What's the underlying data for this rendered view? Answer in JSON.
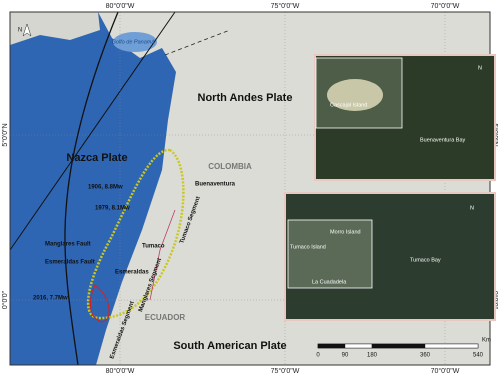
{
  "frame": {
    "top": [
      "80°0'0\"W",
      "75°0'0\"W",
      "70°0'0\"W"
    ],
    "bottom": [
      "80°0'0\"W",
      "75°0'0\"W",
      "70°0'0\"W"
    ],
    "left": [
      "5°0'0\"N",
      "0°0'0\""
    ],
    "right": [
      "5°0'0\"N",
      "0°0'0\""
    ]
  },
  "main_map": {
    "north": "N",
    "gulf": "Golfo de Panamá",
    "north_andes": "North Andes Plate",
    "nazca": "Nazca Plate",
    "colombia": "COLOMBIA",
    "buenaventura": "Buenaventura",
    "eq_1906": "1906, 8.8Mw",
    "eq_1979": "1979, 8.1Mw",
    "manglares_fault": "Manglares Fault",
    "esmeraldas_fault": "Esmeraldas Fault",
    "tumaco": "Tumaco",
    "esmeraldas": "Esmeraldas",
    "eq_2016": "2016, 7.7Mw",
    "tumaco_segment": "Tumaco Segment",
    "manglares_segment": "Manglares Segment",
    "esmeraldas_segment": "Esmeraldas Segment",
    "ecuador": "ECUADOR",
    "south_american": "South American Plate"
  },
  "inset_top": {
    "north": "N",
    "cascajal": "Cascajal Island",
    "bay": "Buenaventura Bay"
  },
  "inset_bottom": {
    "north": "N",
    "morro": "Morro Island",
    "tumaco_island": "Tumaco Island",
    "cuadadela": "La Cuadadela",
    "bay": "Tumaco Bay"
  },
  "scale_bar": {
    "ticks": [
      "0",
      "90",
      "180",
      "360",
      "540"
    ],
    "unit": "Km"
  }
}
